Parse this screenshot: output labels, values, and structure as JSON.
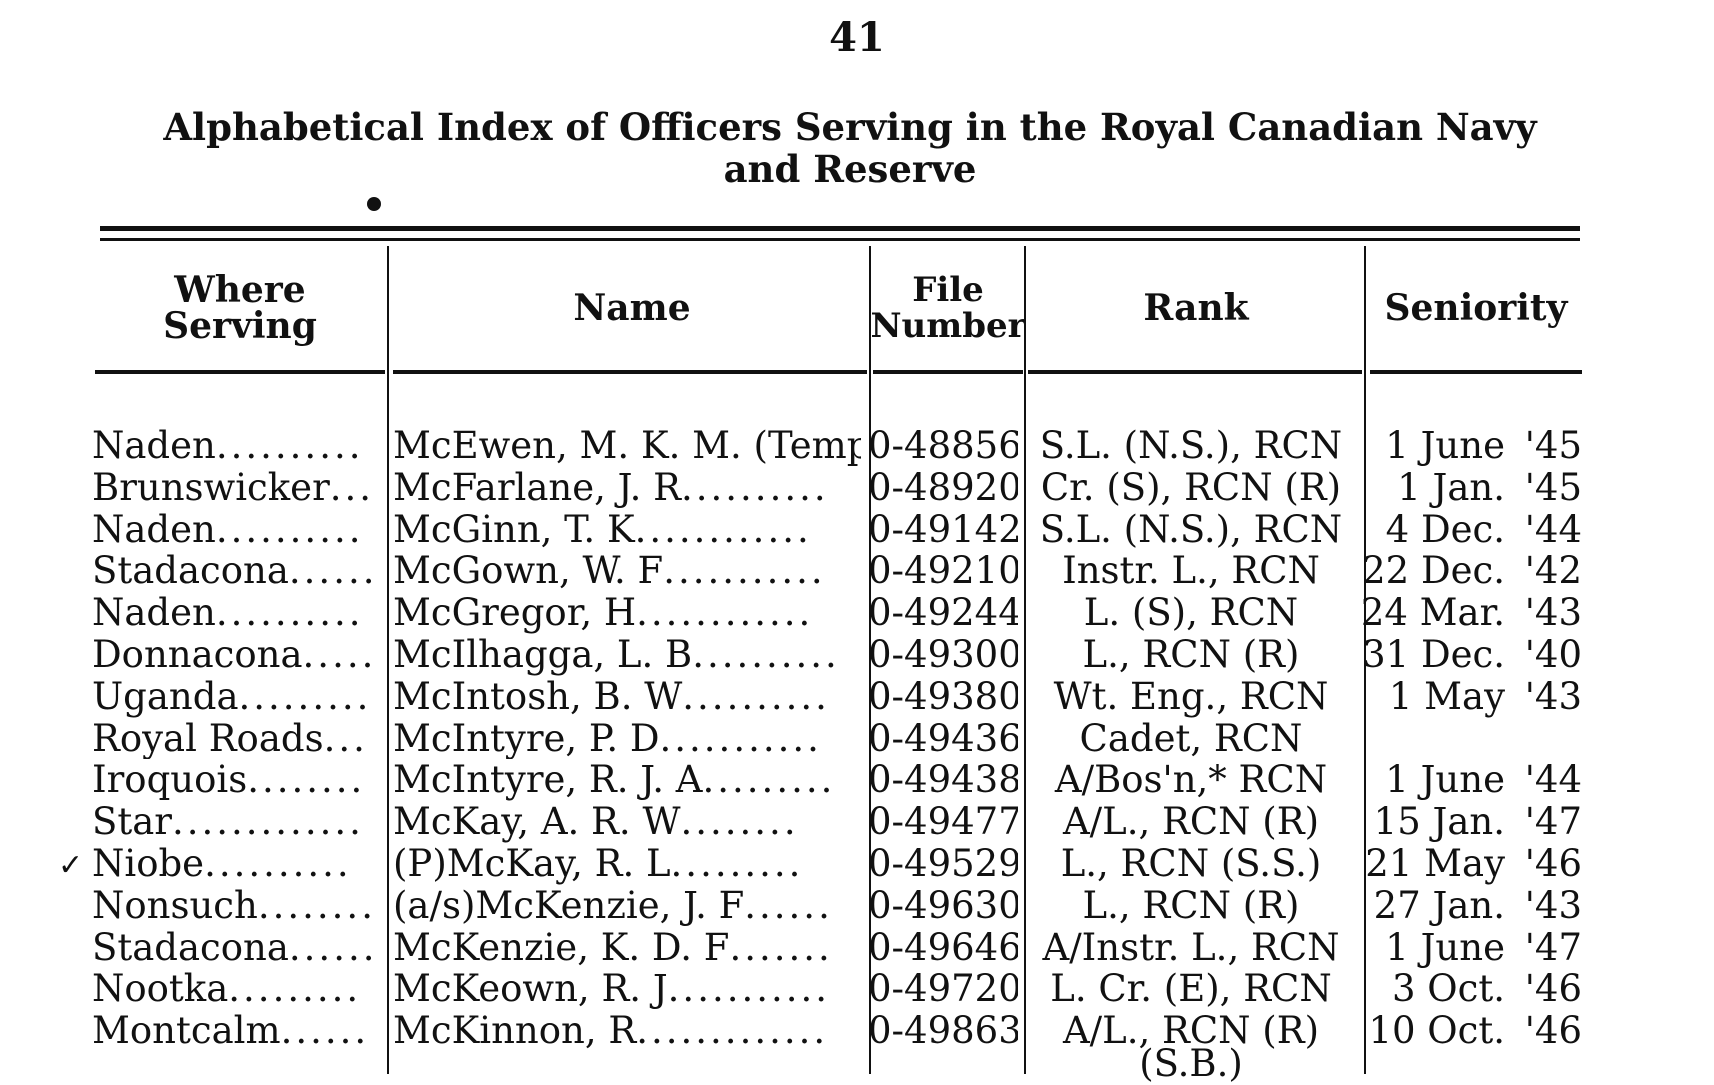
{
  "page_number": "41",
  "title_line1": "Alphabetical Index of Officers Serving in the Royal Canadian Navy",
  "title_line2": "and Reserve",
  "columns": {
    "where": "Where Serving",
    "name": "Name",
    "file_line1": "File",
    "file_line2": "Number",
    "rank": "Rank",
    "seniority": "Seniority"
  },
  "rows": [
    {
      "where": "Naden",
      "where_dots": "..........",
      "name": "McEwen, M. K. M. (Temp.)",
      "name_dots": "",
      "file": "0-48856",
      "rank": "S.L. (N.S.), RCN",
      "sen": "1 June",
      "yr": "'45"
    },
    {
      "where": "Brunswicker",
      "where_dots": "....",
      "name": "McFarlane, J. R",
      "name_dots": "..........",
      "file": "0-48920",
      "rank": "Cr. (S), RCN (R)",
      "sen": "1 Jan.",
      "yr": "'45"
    },
    {
      "where": "Naden",
      "where_dots": "..........",
      "name": "McGinn, T. K",
      "name_dots": "............",
      "file": "0-49142",
      "rank": "S.L. (N.S.), RCN",
      "sen": "4 Dec.",
      "yr": "'44"
    },
    {
      "where": "Stadacona",
      "where_dots": "......",
      "name": "McGown, W. F",
      "name_dots": "...........",
      "file": "0-49210",
      "rank": "Instr. L., RCN",
      "sen": "22 Dec.",
      "yr": "'42"
    },
    {
      "where": "Naden",
      "where_dots": "..........",
      "name": "McGregor, H",
      "name_dots": "............",
      "file": "0-49244",
      "rank": "L. (S), RCN",
      "sen": "24 Mar.",
      "yr": "'43"
    },
    {
      "where": "Donnacona",
      "where_dots": ".....",
      "name": "McIlhagga, L. B",
      "name_dots": "..........",
      "file": "0-49300",
      "rank": "L., RCN (R)",
      "sen": "31 Dec.",
      "yr": "'40"
    },
    {
      "where": "Uganda",
      "where_dots": ".........",
      "name": "McIntosh, B. W",
      "name_dots": "..........",
      "file": "0-49380",
      "rank": "Wt. Eng., RCN",
      "sen": "1 May",
      "yr": "'43"
    },
    {
      "where": "Royal Roads",
      "where_dots": "...",
      "name": "McIntyre, P. D",
      "name_dots": "...........",
      "file": "0-49436",
      "rank": "Cadet, RCN",
      "sen": "",
      "yr": ""
    },
    {
      "where": "Iroquois",
      "where_dots": "........",
      "name": "McIntyre, R. J. A",
      "name_dots": ".........",
      "file": "0-49438",
      "rank": "A/Bos'n,* RCN",
      "sen": "1 June",
      "yr": "'44"
    },
    {
      "where": "Star",
      "where_dots": ".............",
      "name": "McKay, A. R. W",
      "name_dots": "........",
      "file": "0-49477",
      "rank": "A/L., RCN (R)",
      "sen": "15 Jan.",
      "yr": "'47"
    },
    {
      "where": "Niobe",
      "where_dots": "..........",
      "name": "(P)McKay, R. L",
      "name_dots": ".........",
      "file": "0-49529",
      "rank": "L., RCN (S.S.)",
      "sen": "21 May",
      "yr": "'46",
      "check": "✓"
    },
    {
      "where": "Nonsuch",
      "where_dots": "........",
      "name": "(a/s)McKenzie, J. F",
      "name_dots": "......",
      "file": "0-49630",
      "rank": "L., RCN (R)",
      "sen": "27 Jan.",
      "yr": "'43"
    },
    {
      "where": "Stadacona",
      "where_dots": "......",
      "name": "McKenzie, K. D. F",
      "name_dots": ".......",
      "file": "0-49646",
      "rank": "A/Instr. L., RCN",
      "sen": "1 June",
      "yr": "'47"
    },
    {
      "where": "Nootka",
      "where_dots": ".........",
      "name": "McKeown, R. J",
      "name_dots": "...........",
      "file": "0-49720",
      "rank": "L. Cr. (E), RCN",
      "sen": "3 Oct.",
      "yr": "'46"
    },
    {
      "where": "Montcalm",
      "where_dots": "......",
      "name": "McKinnon, R",
      "name_dots": ".............",
      "file": "0-49863",
      "rank": "A/L., RCN (R)",
      "sen": "10 Oct.",
      "yr": "'46"
    }
  ],
  "rank_continuation": "(S.B.)"
}
